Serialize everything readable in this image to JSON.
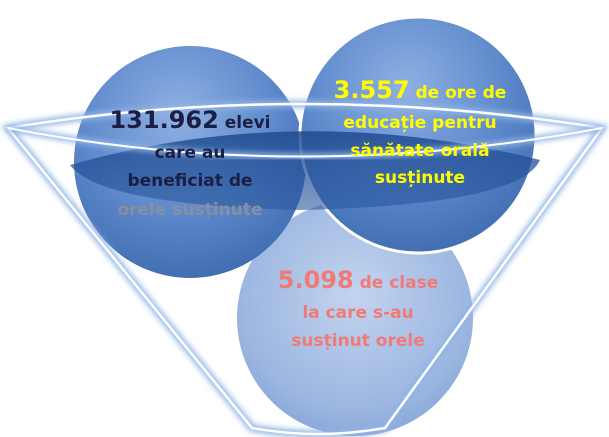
{
  "nodes": [
    {
      "number": "131.962",
      "lines": [
        "elevi",
        "care au",
        "beneficiat de",
        "orele susținute"
      ]
    },
    {
      "number": "3.557",
      "lines": [
        "de ore de",
        "educație pentru",
        "sănătate orală",
        "susținute"
      ]
    },
    {
      "number": "5.098",
      "lines": [
        "de clase",
        "la care s-au",
        "susținut orele"
      ]
    }
  ]
}
